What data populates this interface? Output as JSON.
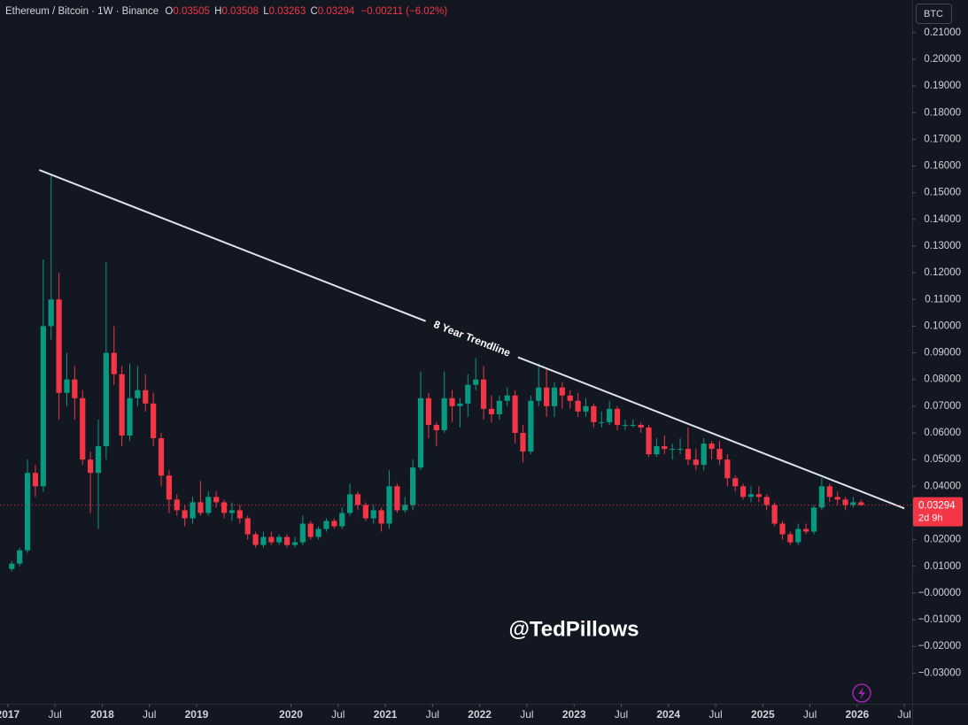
{
  "chart_data": {
    "type": "candlestick",
    "header": {
      "symbol": "Ethereum / Bitcoin · 1W · Binance",
      "items": [
        {
          "label": "O",
          "value": 0.03505
        },
        {
          "label": "H",
          "value": 0.03508
        },
        {
          "label": "L",
          "value": 0.03263
        },
        {
          "label": "C",
          "value": 0.03294
        }
      ],
      "change": "−0.00211 (−6.02%)"
    },
    "currency": "BTC",
    "watermark": "@TedPillows",
    "up_color": "#089981",
    "down_color": "#f23645",
    "grid": false,
    "x": [
      "2017-01",
      "2017-02",
      "2017-03",
      "2017-04",
      "2017-05",
      "2017-06",
      "2017-07",
      "2017-08",
      "2017-09",
      "2017-10",
      "2017-11",
      "2017-12",
      "2018-01",
      "2018-02",
      "2018-03",
      "2018-04",
      "2018-05",
      "2018-06",
      "2018-07",
      "2018-08",
      "2018-09",
      "2018-10",
      "2018-11",
      "2018-12",
      "2019-01",
      "2019-02",
      "2019-03",
      "2019-04",
      "2019-05",
      "2019-06",
      "2019-07",
      "2019-08",
      "2019-09",
      "2019-10",
      "2019-11",
      "2019-12",
      "2020-01",
      "2020-02",
      "2020-03",
      "2020-04",
      "2020-05",
      "2020-06",
      "2020-07",
      "2020-08",
      "2020-09",
      "2020-10",
      "2020-11",
      "2020-12",
      "2021-01",
      "2021-02",
      "2021-03",
      "2021-04",
      "2021-05",
      "2021-06",
      "2021-07",
      "2021-08",
      "2021-09",
      "2021-10",
      "2021-11",
      "2021-12",
      "2022-01",
      "2022-02",
      "2022-03",
      "2022-04",
      "2022-05",
      "2022-06",
      "2022-07",
      "2022-08",
      "2022-09",
      "2022-10",
      "2022-11",
      "2022-12",
      "2023-01",
      "2023-02",
      "2023-03",
      "2023-04",
      "2023-05",
      "2023-06",
      "2023-07",
      "2023-08",
      "2023-09",
      "2023-10",
      "2023-11",
      "2023-12",
      "2024-01",
      "2024-02",
      "2024-03",
      "2024-04",
      "2024-05",
      "2024-06",
      "2024-07",
      "2024-08",
      "2024-09",
      "2024-10",
      "2024-11",
      "2024-12",
      "2025-01",
      "2025-02",
      "2025-03",
      "2025-04",
      "2025-05",
      "2025-06",
      "2025-07",
      "2025-08",
      "2025-09",
      "2025-10",
      "2025-11",
      "2025-12",
      "2026-01"
    ],
    "open": [
      0.009,
      0.011,
      0.016,
      0.045,
      0.04,
      0.1,
      0.11,
      0.075,
      0.08,
      0.073,
      0.05,
      0.045,
      0.055,
      0.09,
      0.082,
      0.059,
      0.073,
      0.076,
      0.071,
      0.058,
      0.044,
      0.035,
      0.031,
      0.028,
      0.034,
      0.03,
      0.036,
      0.034,
      0.03,
      0.031,
      0.028,
      0.022,
      0.018,
      0.021,
      0.019,
      0.021,
      0.018,
      0.019,
      0.026,
      0.021,
      0.024,
      0.027,
      0.025,
      0.03,
      0.037,
      0.033,
      0.028,
      0.031,
      0.026,
      0.04,
      0.031,
      0.033,
      0.047,
      0.073,
      0.063,
      0.061,
      0.073,
      0.07,
      0.071,
      0.078,
      0.08,
      0.069,
      0.067,
      0.072,
      0.074,
      0.06,
      0.053,
      0.072,
      0.077,
      0.07,
      0.077,
      0.074,
      0.072,
      0.068,
      0.07,
      0.064,
      0.064,
      0.069,
      0.063,
      0.063,
      0.063,
      0.062,
      0.052,
      0.055,
      0.054,
      0.054,
      0.054,
      0.05,
      0.048,
      0.056,
      0.054,
      0.05,
      0.043,
      0.04,
      0.036,
      0.037,
      0.036,
      0.033,
      0.026,
      0.022,
      0.019,
      0.024,
      0.023,
      0.032,
      0.04,
      0.036,
      0.035,
      0.033,
      0.034
    ],
    "high": [
      0.012,
      0.017,
      0.05,
      0.048,
      0.125,
      0.157,
      0.12,
      0.09,
      0.085,
      0.076,
      0.053,
      0.065,
      0.124,
      0.1,
      0.085,
      0.086,
      0.085,
      0.082,
      0.075,
      0.06,
      0.046,
      0.037,
      0.033,
      0.036,
      0.042,
      0.038,
      0.038,
      0.035,
      0.034,
      0.033,
      0.029,
      0.023,
      0.023,
      0.023,
      0.022,
      0.022,
      0.021,
      0.029,
      0.027,
      0.025,
      0.028,
      0.028,
      0.032,
      0.041,
      0.038,
      0.034,
      0.033,
      0.032,
      0.046,
      0.041,
      0.036,
      0.05,
      0.083,
      0.075,
      0.064,
      0.083,
      0.076,
      0.073,
      0.082,
      0.088,
      0.085,
      0.074,
      0.074,
      0.077,
      0.076,
      0.063,
      0.074,
      0.086,
      0.084,
      0.079,
      0.079,
      0.076,
      0.075,
      0.073,
      0.071,
      0.068,
      0.072,
      0.07,
      0.065,
      0.065,
      0.064,
      0.063,
      0.058,
      0.059,
      0.056,
      0.058,
      0.062,
      0.054,
      0.058,
      0.057,
      0.057,
      0.052,
      0.044,
      0.041,
      0.04,
      0.04,
      0.037,
      0.034,
      0.027,
      0.023,
      0.026,
      0.026,
      0.033,
      0.043,
      0.041,
      0.038,
      0.036,
      0.036,
      0.035
    ],
    "low": [
      0.008,
      0.01,
      0.015,
      0.036,
      0.038,
      0.095,
      0.065,
      0.07,
      0.065,
      0.048,
      0.03,
      0.024,
      0.05,
      0.078,
      0.055,
      0.057,
      0.07,
      0.068,
      0.055,
      0.04,
      0.03,
      0.029,
      0.025,
      0.026,
      0.029,
      0.029,
      0.032,
      0.028,
      0.027,
      0.026,
      0.02,
      0.017,
      0.017,
      0.018,
      0.018,
      0.017,
      0.017,
      0.018,
      0.02,
      0.02,
      0.023,
      0.024,
      0.024,
      0.029,
      0.031,
      0.027,
      0.026,
      0.023,
      0.024,
      0.03,
      0.03,
      0.031,
      0.046,
      0.058,
      0.055,
      0.06,
      0.064,
      0.062,
      0.066,
      0.076,
      0.065,
      0.064,
      0.065,
      0.07,
      0.056,
      0.049,
      0.052,
      0.07,
      0.066,
      0.066,
      0.069,
      0.069,
      0.066,
      0.066,
      0.062,
      0.062,
      0.063,
      0.061,
      0.061,
      0.062,
      0.06,
      0.051,
      0.051,
      0.052,
      0.05,
      0.052,
      0.048,
      0.046,
      0.046,
      0.05,
      0.048,
      0.04,
      0.038,
      0.035,
      0.034,
      0.034,
      0.031,
      0.025,
      0.02,
      0.018,
      0.018,
      0.022,
      0.022,
      0.031,
      0.034,
      0.033,
      0.031,
      0.032,
      0.0326
    ],
    "close": [
      0.011,
      0.016,
      0.045,
      0.04,
      0.1,
      0.11,
      0.075,
      0.08,
      0.073,
      0.05,
      0.045,
      0.055,
      0.09,
      0.082,
      0.059,
      0.073,
      0.076,
      0.071,
      0.058,
      0.044,
      0.035,
      0.031,
      0.028,
      0.034,
      0.03,
      0.036,
      0.034,
      0.03,
      0.031,
      0.028,
      0.022,
      0.018,
      0.021,
      0.019,
      0.021,
      0.018,
      0.019,
      0.026,
      0.021,
      0.024,
      0.027,
      0.025,
      0.03,
      0.037,
      0.033,
      0.028,
      0.031,
      0.026,
      0.04,
      0.031,
      0.033,
      0.047,
      0.073,
      0.063,
      0.061,
      0.073,
      0.07,
      0.071,
      0.078,
      0.08,
      0.069,
      0.067,
      0.072,
      0.074,
      0.06,
      0.053,
      0.072,
      0.077,
      0.07,
      0.077,
      0.074,
      0.072,
      0.068,
      0.07,
      0.064,
      0.064,
      0.069,
      0.063,
      0.063,
      0.063,
      0.062,
      0.052,
      0.055,
      0.054,
      0.054,
      0.054,
      0.05,
      0.048,
      0.056,
      0.054,
      0.05,
      0.043,
      0.04,
      0.036,
      0.037,
      0.036,
      0.033,
      0.026,
      0.022,
      0.019,
      0.024,
      0.023,
      0.032,
      0.04,
      0.036,
      0.035,
      0.033,
      0.034,
      0.03294
    ],
    "last_price": 0.03294,
    "countdown": "2d 9h",
    "trendline": {
      "label": "8 Year Trendline",
      "x": [
        "2017-05",
        "2026-07"
      ],
      "values": [
        0.1585,
        0.0317
      ]
    },
    "xlim": [
      "2016-12",
      "2026-08"
    ],
    "xticks": [
      {
        "value": "2017-01",
        "label": "2017"
      },
      {
        "value": "2017-07",
        "label": "Jul"
      },
      {
        "value": "2018-01",
        "label": "2018"
      },
      {
        "value": "2018-07",
        "label": "Jul"
      },
      {
        "value": "2019-01",
        "label": "2019"
      },
      {
        "value": "2020-01",
        "label": "2020"
      },
      {
        "value": "2020-07",
        "label": "Jul"
      },
      {
        "value": "2021-01",
        "label": "2021"
      },
      {
        "value": "2021-07",
        "label": "Jul"
      },
      {
        "value": "2022-01",
        "label": "2022"
      },
      {
        "value": "2022-07",
        "label": "Jul"
      },
      {
        "value": "2023-01",
        "label": "2023"
      },
      {
        "value": "2023-07",
        "label": "Jul"
      },
      {
        "value": "2024-01",
        "label": "2024"
      },
      {
        "value": "2024-07",
        "label": "Jul"
      },
      {
        "value": "2025-01",
        "label": "2025"
      },
      {
        "value": "2025-07",
        "label": "Jul"
      },
      {
        "value": "2026-01",
        "label": "2026"
      },
      {
        "value": "2026-07",
        "label": "Jul"
      }
    ],
    "ylim": [
      -0.0415,
      0.2222
    ],
    "yticks": [
      {
        "value": 0.21,
        "label": "0.21000"
      },
      {
        "value": 0.2,
        "label": "0.20000"
      },
      {
        "value": 0.19,
        "label": "0.19000"
      },
      {
        "value": 0.18,
        "label": "0.18000"
      },
      {
        "value": 0.17,
        "label": "0.17000"
      },
      {
        "value": 0.16,
        "label": "0.16000"
      },
      {
        "value": 0.15,
        "label": "0.15000"
      },
      {
        "value": 0.14,
        "label": "0.14000"
      },
      {
        "value": 0.13,
        "label": "0.13000"
      },
      {
        "value": 0.12,
        "label": "0.12000"
      },
      {
        "value": 0.11,
        "label": "0.11000"
      },
      {
        "value": 0.1,
        "label": "0.10000"
      },
      {
        "value": 0.09,
        "label": "0.09000"
      },
      {
        "value": 0.08,
        "label": "0.08000"
      },
      {
        "value": 0.07,
        "label": "0.07000"
      },
      {
        "value": 0.06,
        "label": "0.06000"
      },
      {
        "value": 0.05,
        "label": "0.05000"
      },
      {
        "value": 0.04,
        "label": "0.04000"
      },
      {
        "value": 0.03,
        "label": "0.03000"
      },
      {
        "value": 0.02,
        "label": "0.02000"
      },
      {
        "value": 0.01,
        "label": "0.01000"
      },
      {
        "value": 0,
        "label": "−0.00000"
      },
      {
        "value": -0.01,
        "label": "−0.01000"
      },
      {
        "value": -0.02,
        "label": "−0.02000"
      },
      {
        "value": -0.03,
        "label": "−0.03000"
      }
    ]
  }
}
